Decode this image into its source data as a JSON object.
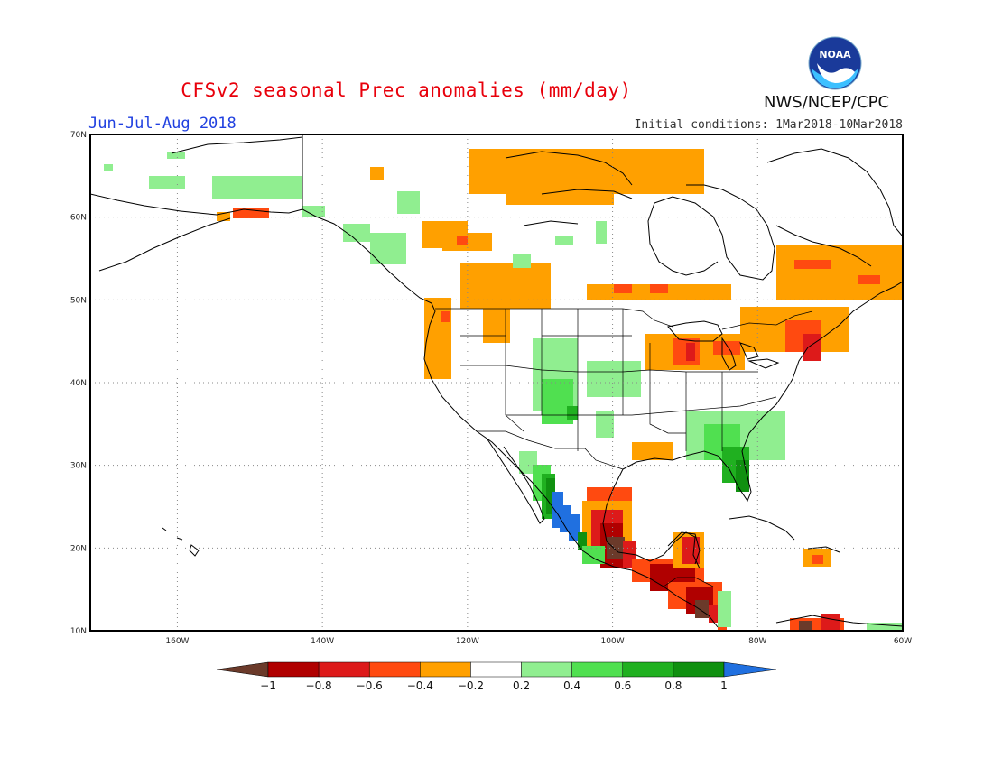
{
  "header": {
    "title": "CFSv2 seasonal Prec anomalies (mm/day)",
    "season": "Jun-Jul-Aug 2018",
    "initial_conditions": "Initial conditions: 1Mar2018-10Mar2018",
    "agency": "NWS/NCEP/CPC",
    "logo_text": "NOAA"
  },
  "map": {
    "lat_labels": [
      "70N",
      "60N",
      "50N",
      "40N",
      "30N",
      "20N",
      "10N"
    ],
    "lon_labels": [
      "160W",
      "140W",
      "120W",
      "100W",
      "80W",
      "60W"
    ],
    "extent": {
      "lon": [
        -172,
        -60
      ],
      "lat": [
        10,
        70
      ]
    }
  },
  "legend": {
    "labels": [
      "-1",
      "-0.8",
      "-0.6",
      "-0.4",
      "-0.2",
      "0.2",
      "0.4",
      "0.6",
      "0.8",
      "1"
    ],
    "colors": {
      "below_-1": "#6b3a2a",
      "-1_-0.8": "#b00000",
      "-0.8_-0.6": "#dd1a1a",
      "-0.6_-0.4": "#ff4a10",
      "-0.4_-0.2": "#ffa000",
      "-0.2_0.2": "#ffffff",
      "0.2_0.4": "#90ee90",
      "0.4_0.6": "#50e050",
      "0.6_0.8": "#20b020",
      "0.8_1": "#109010",
      "above_1": "#2070e0"
    }
  }
}
